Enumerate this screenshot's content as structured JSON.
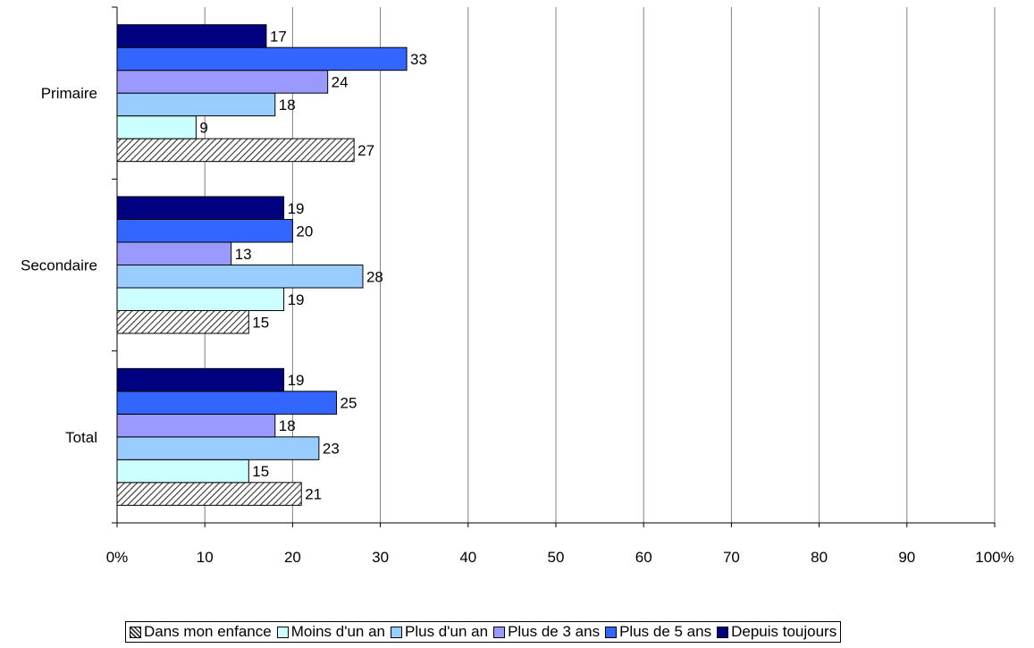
{
  "chart_data": {
    "type": "bar",
    "orientation": "horizontal",
    "categories": [
      "Primaire",
      "Secondaire",
      "Total"
    ],
    "series": [
      {
        "name": "Dans mon enfance",
        "values": [
          27,
          15,
          21
        ],
        "color": "#ffffff",
        "pattern": "diagonal-hatch"
      },
      {
        "name": "Moins d'un an",
        "values": [
          9,
          19,
          15
        ],
        "color": "#ccffff"
      },
      {
        "name": "Plus d'un an",
        "values": [
          18,
          28,
          23
        ],
        "color": "#99ccff"
      },
      {
        "name": "Plus de 3 ans",
        "values": [
          24,
          13,
          18
        ],
        "color": "#9999ff"
      },
      {
        "name": "Plus de 5 ans",
        "values": [
          33,
          20,
          25
        ],
        "color": "#3366ff"
      },
      {
        "name": "Depuis toujours",
        "values": [
          17,
          19,
          19
        ],
        "color": "#000080"
      }
    ],
    "xlim": [
      0,
      100
    ],
    "xticks": [
      "0%",
      "10",
      "20",
      "30",
      "40",
      "50",
      "60",
      "70",
      "80",
      "90",
      "100%"
    ],
    "grid": true,
    "legend": "bottom",
    "title": "",
    "xlabel": "",
    "ylabel": ""
  }
}
